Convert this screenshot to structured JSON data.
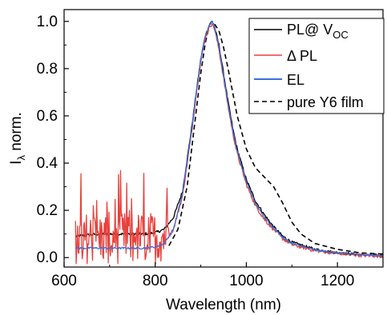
{
  "chart_data": {
    "type": "line",
    "title": "",
    "xlabel": "Wavelength (nm)",
    "ylabel_main": "I",
    "ylabel_sub": "λ",
    "ylabel_suffix": " norm.",
    "xlim": [
      600,
      1300
    ],
    "ylim": [
      -0.04,
      1.05
    ],
    "x_ticks": [
      600,
      800,
      1000,
      1200
    ],
    "x_tick_labels": [
      "600",
      "800",
      "1000",
      "1200"
    ],
    "y_ticks": [
      0.0,
      0.2,
      0.4,
      0.6,
      0.8,
      1.0
    ],
    "y_tick_labels": [
      "0.0",
      "0.2",
      "0.4",
      "0.6",
      "0.8",
      "1.0"
    ],
    "legend_position": "top-right",
    "colors": {
      "pl_voc": "#000000",
      "delta_pl": "#e8413c",
      "el": "#3b6fd8",
      "pure_y6": "#000000"
    },
    "series": [
      {
        "name": "PL@ V",
        "name_sub": "OC",
        "style": "solid",
        "x": [
          625,
          650,
          675,
          700,
          725,
          750,
          775,
          800,
          820,
          840,
          860,
          880,
          890,
          900,
          910,
          920,
          925,
          930,
          940,
          950,
          960,
          970,
          980,
          1000,
          1020,
          1040,
          1060,
          1080,
          1100,
          1150,
          1200,
          1250,
          1300
        ],
        "y": [
          0.09,
          0.095,
          0.1,
          0.1,
          0.1,
          0.1,
          0.1,
          0.105,
          0.12,
          0.17,
          0.28,
          0.55,
          0.7,
          0.84,
          0.94,
          0.99,
          1.0,
          0.98,
          0.9,
          0.78,
          0.66,
          0.55,
          0.46,
          0.33,
          0.24,
          0.18,
          0.13,
          0.09,
          0.065,
          0.035,
          0.02,
          0.012,
          0.008
        ]
      },
      {
        "name": "Δ PL",
        "style": "solid-noisy",
        "x": [
          625,
          650,
          675,
          700,
          725,
          750,
          775,
          800,
          820,
          840,
          860,
          880,
          890,
          900,
          910,
          920,
          925,
          930,
          940,
          950,
          960,
          970,
          980,
          1000,
          1020,
          1040,
          1060,
          1080,
          1100,
          1150,
          1200,
          1250,
          1300
        ],
        "y": [
          0.05,
          0.05,
          0.05,
          0.05,
          0.05,
          0.05,
          0.05,
          0.05,
          0.06,
          0.12,
          0.26,
          0.53,
          0.69,
          0.83,
          0.93,
          0.98,
          0.99,
          0.97,
          0.88,
          0.76,
          0.64,
          0.53,
          0.44,
          0.31,
          0.22,
          0.16,
          0.12,
          0.08,
          0.055,
          0.03,
          0.018,
          0.01,
          0.006
        ]
      },
      {
        "name": "EL",
        "style": "solid",
        "x": [
          625,
          650,
          675,
          700,
          725,
          750,
          775,
          800,
          820,
          840,
          860,
          880,
          890,
          900,
          910,
          920,
          925,
          930,
          940,
          950,
          960,
          970,
          980,
          1000,
          1020,
          1040,
          1060,
          1080,
          1100,
          1150,
          1200,
          1250,
          1300
        ],
        "y": [
          0.04,
          0.04,
          0.04,
          0.04,
          0.04,
          0.04,
          0.04,
          0.045,
          0.06,
          0.12,
          0.27,
          0.54,
          0.7,
          0.84,
          0.94,
          0.99,
          1.0,
          0.98,
          0.89,
          0.77,
          0.65,
          0.54,
          0.45,
          0.32,
          0.23,
          0.17,
          0.125,
          0.085,
          0.06,
          0.032,
          0.02,
          0.012,
          0.007
        ]
      },
      {
        "name": "pure Y6 film",
        "style": "dashed",
        "x": [
          830,
          850,
          870,
          890,
          900,
          910,
          920,
          930,
          940,
          950,
          960,
          970,
          980,
          1000,
          1020,
          1040,
          1060,
          1080,
          1100,
          1120,
          1150,
          1200,
          1250,
          1300
        ],
        "y": [
          0.05,
          0.12,
          0.3,
          0.62,
          0.78,
          0.91,
          0.99,
          0.99,
          0.96,
          0.89,
          0.8,
          0.7,
          0.6,
          0.46,
          0.38,
          0.34,
          0.3,
          0.23,
          0.15,
          0.1,
          0.06,
          0.035,
          0.02,
          0.015
        ]
      }
    ]
  }
}
